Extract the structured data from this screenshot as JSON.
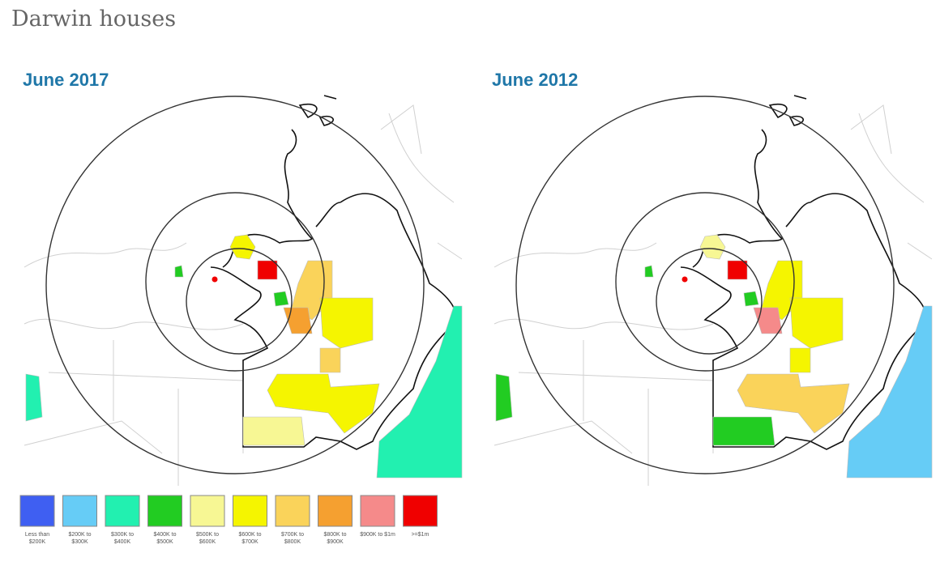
{
  "title": "Darwin houses",
  "maps": [
    {
      "title": "June 2017"
    },
    {
      "title": "June 2012"
    }
  ],
  "legend": [
    {
      "label": "Less than $200K",
      "color": "#3f5ff2"
    },
    {
      "label": "$200K to $300K",
      "color": "#66ccf6"
    },
    {
      "label": "$300K to $400K",
      "color": "#22f0b0"
    },
    {
      "label": "$400K to $500K",
      "color": "#22cc22"
    },
    {
      "label": "$500K to $600K",
      "color": "#f7f794"
    },
    {
      "label": "$600K to $700K",
      "color": "#f5f500"
    },
    {
      "label": "$700K to $800K",
      "color": "#fad35a"
    },
    {
      "label": "$800K to $900K",
      "color": "#f5a030"
    },
    {
      "label": "$900K to $1m",
      "color": "#f58a8a"
    },
    {
      "label": ">=$1m",
      "color": "#f00000"
    }
  ]
}
